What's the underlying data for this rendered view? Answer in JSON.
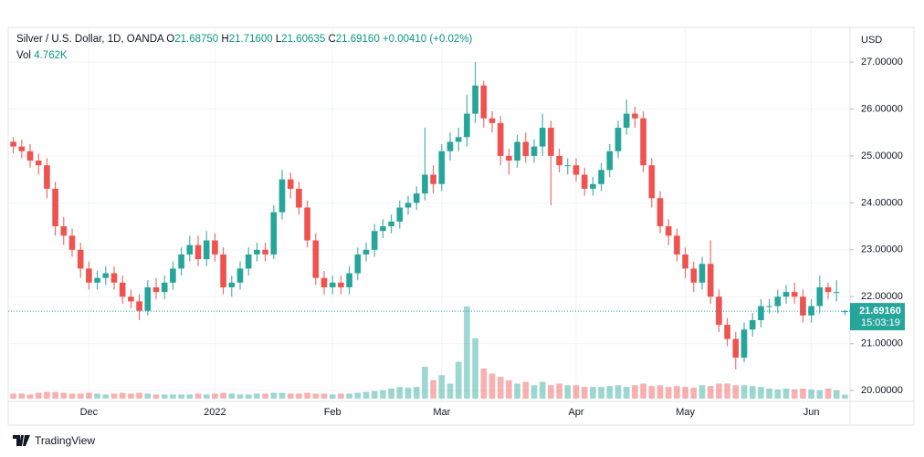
{
  "chart_data": {
    "type": "candlestick",
    "title": "Silver / U.S. Dollar, 1D, OANDA",
    "legend": {
      "open_label": "O",
      "open": "21.68750",
      "high_label": "H",
      "high": "21.71600",
      "low_label": "L",
      "low": "21.60635",
      "close_label": "C",
      "close": "21.69160",
      "change": "+0.00410 (+0.02%)"
    },
    "volume_label": "Vol",
    "volume_value_label": "4.762K",
    "currency": "USD",
    "last_price_label": "21.69160",
    "countdown": "15:03:19",
    "brand": "TradingView",
    "up_color": "#26a69a",
    "down_color": "#ef5350",
    "grid": true,
    "ylim": [
      19.77,
      27.7
    ],
    "yticks": [
      {
        "value": 20,
        "label": "20.00000"
      },
      {
        "value": 21,
        "label": "21.00000"
      },
      {
        "value": 22,
        "label": "22.00000"
      },
      {
        "value": 23,
        "label": "23.00000"
      },
      {
        "value": 24,
        "label": "24.00000"
      },
      {
        "value": 25,
        "label": "25.00000"
      },
      {
        "value": 26,
        "label": "26.00000"
      },
      {
        "value": 27,
        "label": "27.00000"
      }
    ],
    "categories": [
      null,
      null,
      null,
      null,
      null,
      null,
      null,
      null,
      null,
      "Dec",
      null,
      null,
      null,
      null,
      null,
      null,
      null,
      null,
      null,
      null,
      null,
      null,
      null,
      null,
      "2022",
      null,
      null,
      null,
      null,
      null,
      null,
      null,
      null,
      null,
      null,
      null,
      null,
      null,
      "Feb",
      null,
      null,
      null,
      null,
      null,
      null,
      null,
      null,
      null,
      null,
      null,
      null,
      "Mar",
      null,
      null,
      null,
      null,
      null,
      null,
      null,
      null,
      null,
      null,
      null,
      null,
      null,
      null,
      null,
      "Apr",
      null,
      null,
      null,
      null,
      null,
      null,
      null,
      null,
      null,
      null,
      null,
      null,
      "May",
      null,
      null,
      null,
      null,
      null,
      null,
      null,
      null,
      null,
      null,
      null,
      null,
      null,
      null,
      "Jun",
      null,
      null,
      null,
      null
    ],
    "open": [
      25.3,
      25.2,
      25.1,
      24.9,
      24.8,
      24.3,
      23.5,
      23.3,
      23.0,
      22.6,
      22.3,
      22.4,
      22.5,
      22.3,
      22.0,
      21.9,
      21.7,
      22.2,
      22.1,
      22.3,
      22.6,
      22.9,
      23.1,
      22.8,
      23.2,
      22.9,
      22.2,
      22.3,
      22.6,
      22.9,
      23.0,
      22.9,
      23.8,
      24.5,
      24.3,
      23.9,
      23.2,
      22.4,
      22.2,
      22.3,
      22.2,
      22.5,
      22.9,
      23.0,
      23.4,
      23.5,
      23.6,
      23.9,
      24.0,
      24.2,
      24.6,
      24.4,
      25.1,
      25.3,
      25.4,
      25.9,
      26.5,
      25.8,
      25.7,
      25.0,
      24.9,
      25.3,
      25.0,
      25.2,
      25.6,
      25.0,
      24.8,
      24.8,
      24.6,
      24.3,
      24.4,
      24.7,
      25.1,
      25.6,
      25.9,
      25.8,
      24.8,
      24.1,
      23.5,
      23.3,
      22.9,
      22.6,
      22.3,
      22.7,
      22.0,
      21.4,
      21.1,
      20.7,
      21.3,
      21.5,
      21.8,
      21.8,
      22.0,
      22.1,
      22.0,
      21.6,
      21.8,
      22.2,
      22.1,
      21.6875
    ],
    "high": [
      25.4,
      25.35,
      25.25,
      25.05,
      24.95,
      24.45,
      23.7,
      23.45,
      23.15,
      22.75,
      22.55,
      22.65,
      22.65,
      22.45,
      22.15,
      22.05,
      22.35,
      22.4,
      22.45,
      22.75,
      23.05,
      23.3,
      23.3,
      23.4,
      23.35,
      23.05,
      22.45,
      22.75,
      23.05,
      23.15,
      23.15,
      23.95,
      24.7,
      24.65,
      24.45,
      24.05,
      23.35,
      22.55,
      22.45,
      22.45,
      22.65,
      23.05,
      23.15,
      23.55,
      23.65,
      23.75,
      24.05,
      24.15,
      24.35,
      25.6,
      24.8,
      25.25,
      25.5,
      25.6,
      26.3,
      27.0,
      26.6,
      25.95,
      25.85,
      25.15,
      25.45,
      25.5,
      25.35,
      25.9,
      25.75,
      25.15,
      24.95,
      24.95,
      24.75,
      24.55,
      24.85,
      25.25,
      25.75,
      26.2,
      26.05,
      25.95,
      24.95,
      24.25,
      23.65,
      23.45,
      23.05,
      22.75,
      22.85,
      23.2,
      22.15,
      21.55,
      21.25,
      21.45,
      21.65,
      21.95,
      21.95,
      22.15,
      22.25,
      22.3,
      22.15,
      21.95,
      22.45,
      22.3,
      22.35,
      21.716
    ],
    "low": [
      25.05,
      24.95,
      24.75,
      24.6,
      24.1,
      23.3,
      23.1,
      22.85,
      22.4,
      22.15,
      22.15,
      22.25,
      22.15,
      21.85,
      21.75,
      21.5,
      21.6,
      21.95,
      21.95,
      22.15,
      22.45,
      22.75,
      22.65,
      22.65,
      22.75,
      22.05,
      22.0,
      22.15,
      22.45,
      22.75,
      22.75,
      22.8,
      23.65,
      24.1,
      23.75,
      23.05,
      22.25,
      22.05,
      22.05,
      22.05,
      22.05,
      22.35,
      22.75,
      22.85,
      23.25,
      23.35,
      23.45,
      23.75,
      23.85,
      24.05,
      24.2,
      24.25,
      24.9,
      25.1,
      25.2,
      25.7,
      25.6,
      25.5,
      24.8,
      24.6,
      24.75,
      24.85,
      24.85,
      25.0,
      23.95,
      24.65,
      24.6,
      24.45,
      24.15,
      24.15,
      24.25,
      24.55,
      24.95,
      25.45,
      25.6,
      24.65,
      23.9,
      23.35,
      23.1,
      22.75,
      22.4,
      22.1,
      22.15,
      21.85,
      21.25,
      20.95,
      20.45,
      20.6,
      21.15,
      21.35,
      21.65,
      21.65,
      21.85,
      21.85,
      21.45,
      21.45,
      21.65,
      21.95,
      21.9,
      21.60635
    ],
    "close": [
      25.2,
      25.1,
      24.9,
      24.8,
      24.3,
      23.5,
      23.3,
      23.0,
      22.6,
      22.3,
      22.4,
      22.5,
      22.3,
      22.0,
      21.9,
      21.7,
      22.2,
      22.1,
      22.3,
      22.6,
      22.9,
      23.1,
      22.8,
      23.2,
      22.9,
      22.2,
      22.3,
      22.6,
      22.9,
      23.0,
      22.9,
      23.8,
      24.5,
      24.3,
      23.9,
      23.2,
      22.4,
      22.2,
      22.3,
      22.2,
      22.5,
      22.9,
      23.0,
      23.4,
      23.5,
      23.6,
      23.9,
      24.0,
      24.2,
      24.6,
      24.4,
      25.1,
      25.3,
      25.4,
      25.9,
      26.5,
      25.8,
      25.7,
      25.0,
      24.9,
      25.3,
      25.0,
      25.2,
      25.6,
      25.0,
      24.8,
      24.8,
      24.6,
      24.3,
      24.4,
      24.7,
      25.1,
      25.6,
      25.9,
      25.8,
      24.8,
      24.1,
      23.5,
      23.3,
      22.9,
      22.6,
      22.3,
      22.7,
      22.0,
      21.4,
      21.1,
      20.7,
      21.3,
      21.5,
      21.8,
      21.8,
      22.0,
      22.1,
      22.0,
      21.6,
      21.8,
      22.2,
      22.1,
      22.1,
      21.6916
    ],
    "volume": [
      6,
      6,
      5,
      7,
      8,
      8,
      7,
      6,
      6,
      7,
      6,
      5,
      6,
      7,
      6,
      7,
      6,
      5,
      5,
      5,
      5,
      5,
      6,
      5,
      6,
      7,
      6,
      5,
      5,
      6,
      6,
      7,
      7,
      6,
      6,
      7,
      6,
      6,
      5,
      6,
      6,
      7,
      8,
      9,
      10,
      12,
      14,
      13,
      14,
      38,
      22,
      28,
      18,
      44,
      110,
      72,
      36,
      30,
      26,
      22,
      18,
      20,
      16,
      20,
      16,
      18,
      16,
      16,
      14,
      14,
      14,
      15,
      16,
      14,
      16,
      18,
      15,
      16,
      14,
      15,
      14,
      13,
      16,
      15,
      18,
      18,
      16,
      16,
      15,
      14,
      12,
      11,
      12,
      11,
      12,
      11,
      10,
      12,
      10,
      4.762
    ]
  }
}
